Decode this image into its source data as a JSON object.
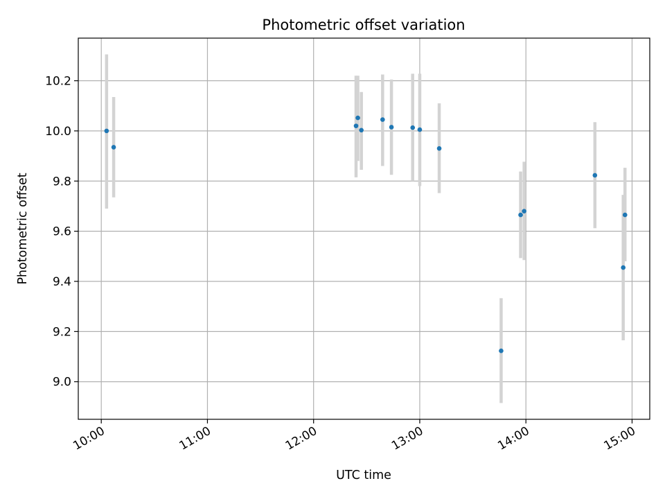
{
  "chart_data": {
    "type": "scatter",
    "title": "Photometric offset variation",
    "xlabel": "UTC time",
    "ylabel": "Photometric offset",
    "xlim": [
      "09:47",
      "15:10"
    ],
    "ylim": [
      8.85,
      10.37
    ],
    "x_ticks": [
      "10:00",
      "11:00",
      "12:00",
      "13:00",
      "14:00",
      "15:00"
    ],
    "y_ticks": [
      9.0,
      9.2,
      9.4,
      9.6,
      9.8,
      10.0,
      10.2
    ],
    "grid": true,
    "errorbar_color": "#d3d3d3",
    "point_color": "#1f77b4",
    "points": [
      {
        "time": "10:03",
        "y": 10.0,
        "ylow": 9.69,
        "yhigh": 10.305
      },
      {
        "time": "10:07",
        "y": 9.935,
        "ylow": 9.735,
        "yhigh": 10.135
      },
      {
        "time": "12:24",
        "y": 10.02,
        "ylow": 9.815,
        "yhigh": 10.22
      },
      {
        "time": "12:25",
        "y": 10.052,
        "ylow": 9.88,
        "yhigh": 10.22
      },
      {
        "time": "12:27",
        "y": 10.003,
        "ylow": 9.845,
        "yhigh": 10.155
      },
      {
        "time": "12:39",
        "y": 10.045,
        "ylow": 9.86,
        "yhigh": 10.225
      },
      {
        "time": "12:44",
        "y": 10.015,
        "ylow": 9.825,
        "yhigh": 10.205
      },
      {
        "time": "12:56",
        "y": 10.013,
        "ylow": 9.8,
        "yhigh": 10.228
      },
      {
        "time": "13:00",
        "y": 10.005,
        "ylow": 9.78,
        "yhigh": 10.228
      },
      {
        "time": "13:11",
        "y": 9.93,
        "ylow": 9.752,
        "yhigh": 10.11
      },
      {
        "time": "13:46",
        "y": 9.123,
        "ylow": 8.915,
        "yhigh": 9.333
      },
      {
        "time": "13:57",
        "y": 9.665,
        "ylow": 9.493,
        "yhigh": 9.838
      },
      {
        "time": "13:59",
        "y": 9.68,
        "ylow": 9.485,
        "yhigh": 9.877
      },
      {
        "time": "14:39",
        "y": 9.823,
        "ylow": 9.612,
        "yhigh": 10.035
      },
      {
        "time": "14:55",
        "y": 9.455,
        "ylow": 9.165,
        "yhigh": 9.745
      },
      {
        "time": "14:56",
        "y": 9.665,
        "ylow": 9.48,
        "yhigh": 9.853
      }
    ]
  }
}
